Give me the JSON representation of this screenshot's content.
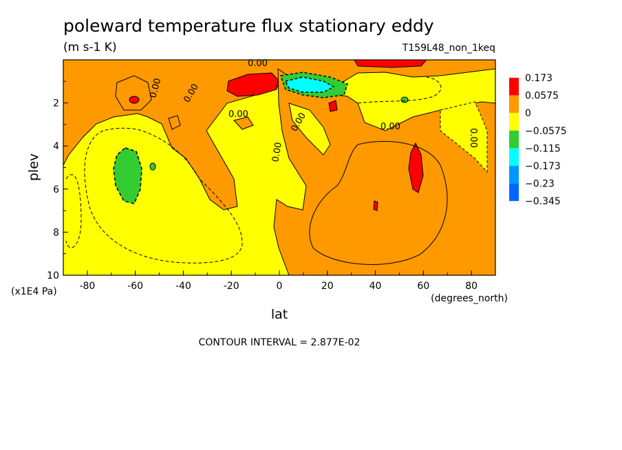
{
  "chart_data": {
    "type": "heatmap",
    "title": "poleward temperature flux stationary eddy",
    "units": "(m s-1 K)",
    "run_label": "T159L48_non_1keq",
    "xlabel": "lat",
    "x_units": "(degrees_north)",
    "ylabel": "plev",
    "y_units": "(x1E4 Pa)",
    "xlim": [
      -90,
      90
    ],
    "ylim": [
      0,
      10
    ],
    "y_reversed": true,
    "x_ticks": [
      "-80",
      "-60",
      "-40",
      "-20",
      "0",
      "20",
      "40",
      "60",
      "80"
    ],
    "y_ticks": [
      "2",
      "4",
      "6",
      "8",
      "10"
    ],
    "contour_interval_text": "CONTOUR INTERVAL = 2.877E-02",
    "contour_label": "0.00",
    "legend": {
      "levels": [
        "0.173",
        "0.0575",
        "0",
        "−0.0575",
        "−0.115",
        "−0.173",
        "−0.23",
        "−0.345"
      ],
      "colors": [
        "#ff0000",
        "#ff9900",
        "#ffff00",
        "#33cc33",
        "#00ffff",
        "#0099ff",
        "#0066ff"
      ]
    },
    "regions": [
      {
        "band": "0 to 0.0575",
        "color": "#ff9900",
        "desc": "southern subtropical upper band"
      },
      {
        "band": "0 to 0.0575",
        "color": "#ff9900",
        "desc": "northern hemisphere broad positive region"
      },
      {
        "band": "> 0.173",
        "color": "#ff0000",
        "desc": "maximum near 10S, 1.2E4 Pa"
      },
      {
        "band": "> 0.173",
        "color": "#ff0000",
        "desc": "maximum near 55N, 5E4 Pa"
      },
      {
        "band": "< -0.115",
        "color": "#00ffff",
        "desc": "minimum near 10N, 1.2E4 Pa"
      },
      {
        "band": "-0.0575 to -0.115",
        "color": "#33cc33",
        "desc": "minimum near 62S, 5.5E4 Pa"
      }
    ]
  }
}
